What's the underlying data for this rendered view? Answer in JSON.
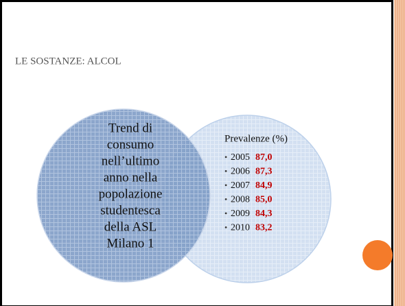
{
  "title": "LE SOSTANZE: ALCOL",
  "left_circle": {
    "lines": [
      "Trend di",
      "consumo",
      "nell’ultimo",
      "anno nella",
      "popolazione",
      "studentesca",
      "della ASL",
      "Milano 1"
    ]
  },
  "right_circle": {
    "heading": "Prevalenze (%)",
    "items": [
      {
        "year": "2005",
        "value": "87,0"
      },
      {
        "year": "2006",
        "value": "87,3"
      },
      {
        "year": "2007",
        "value": "84,9"
      },
      {
        "year": "2008",
        "value": "85,0"
      },
      {
        "year": "2009",
        "value": "84,3"
      },
      {
        "year": "2010",
        "value": "83,2"
      }
    ]
  }
}
